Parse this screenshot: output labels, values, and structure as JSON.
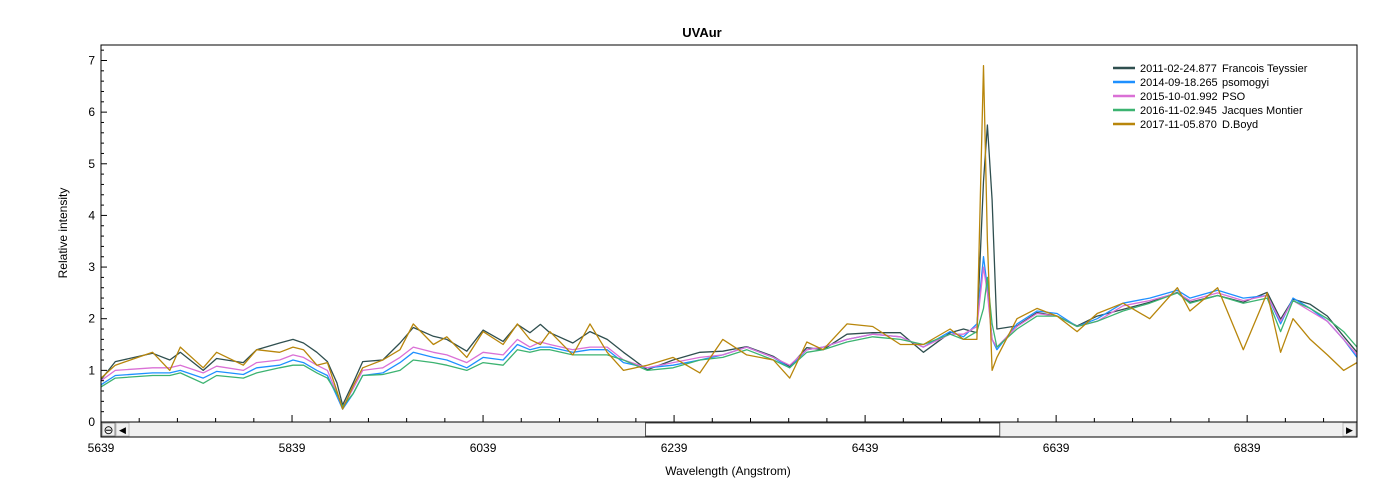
{
  "chart_data": {
    "type": "line",
    "title": "UVAur",
    "xlabel": "Wavelength (Angstrom)",
    "ylabel": "Relative intensity",
    "xlim": [
      5639,
      6954
    ],
    "ylim": [
      0,
      7.3
    ],
    "xticks": [
      "5639",
      "5839",
      "6039",
      "6239",
      "6439",
      "6639",
      "6839"
    ],
    "yticks": [
      "0",
      "1",
      "2",
      "3",
      "4",
      "5",
      "6",
      "7"
    ],
    "grid": false,
    "legend_position": "top-right",
    "x": [
      5639,
      5654,
      5693,
      5711,
      5722,
      5746,
      5760,
      5788,
      5802,
      5826,
      5840,
      5851,
      5865,
      5876,
      5886,
      5892,
      5903,
      5913,
      5934,
      5952,
      5966,
      5987,
      6001,
      6022,
      6039,
      6060,
      6075,
      6088,
      6099,
      6109,
      6133,
      6151,
      6169,
      6186,
      6211,
      6238,
      6266,
      6290,
      6315,
      6343,
      6360,
      6378,
      6395,
      6420,
      6447,
      6476,
      6500,
      6528,
      6542,
      6556,
      6563,
      6567,
      6572,
      6577,
      6598,
      6619,
      6640,
      6661,
      6682,
      6709,
      6737,
      6766,
      6779,
      6808,
      6835,
      6860,
      6874,
      6887,
      6905,
      6923,
      6940,
      6954
    ],
    "series": [
      {
        "name": "2011-02-24.877",
        "observer": "Francois Teyssier",
        "color": "#2f4f4f",
        "values": [
          0.82,
          1.17,
          1.33,
          1.2,
          1.35,
          1.0,
          1.23,
          1.15,
          1.4,
          1.53,
          1.6,
          1.53,
          1.35,
          1.17,
          0.76,
          0.33,
          0.76,
          1.17,
          1.2,
          1.53,
          1.83,
          1.66,
          1.6,
          1.37,
          1.78,
          1.56,
          1.89,
          1.73,
          1.89,
          1.73,
          1.53,
          1.75,
          1.6,
          1.35,
          1.01,
          1.2,
          1.35,
          1.37,
          1.46,
          1.27,
          1.07,
          1.44,
          1.4,
          1.7,
          1.73,
          1.73,
          1.35,
          1.73,
          1.8,
          1.73,
          4.66,
          5.75,
          4.3,
          1.8,
          1.86,
          2.12,
          2.05,
          1.86,
          2.05,
          2.18,
          2.32,
          2.51,
          2.32,
          2.45,
          2.32,
          2.51,
          1.99,
          2.38,
          2.28,
          2.05,
          1.66,
          1.35
        ]
      },
      {
        "name": "2014-09-18.265",
        "observer": "psomogyi",
        "color": "#1e90ff",
        "values": [
          0.72,
          0.9,
          0.95,
          0.95,
          1.0,
          0.85,
          0.98,
          0.92,
          1.05,
          1.1,
          1.2,
          1.15,
          1.0,
          0.9,
          0.5,
          0.25,
          0.55,
          0.9,
          0.95,
          1.15,
          1.35,
          1.25,
          1.2,
          1.05,
          1.25,
          1.2,
          1.5,
          1.4,
          1.45,
          1.45,
          1.35,
          1.4,
          1.4,
          1.15,
          1.05,
          1.1,
          1.2,
          1.3,
          1.45,
          1.25,
          1.05,
          1.4,
          1.45,
          1.6,
          1.7,
          1.65,
          1.45,
          1.75,
          1.65,
          1.9,
          3.2,
          2.6,
          1.6,
          1.4,
          1.9,
          2.15,
          2.1,
          1.85,
          2.0,
          2.3,
          2.4,
          2.55,
          2.4,
          2.55,
          2.4,
          2.45,
          1.9,
          2.4,
          2.2,
          1.95,
          1.6,
          1.25
        ]
      },
      {
        "name": "2015-10-01.992",
        "observer": "PSO",
        "color": "#da70d6",
        "values": [
          0.8,
          1.0,
          1.05,
          1.05,
          1.1,
          0.95,
          1.08,
          1.0,
          1.15,
          1.2,
          1.3,
          1.25,
          1.1,
          1.0,
          0.55,
          0.28,
          0.65,
          1.0,
          1.05,
          1.25,
          1.45,
          1.35,
          1.3,
          1.15,
          1.35,
          1.3,
          1.6,
          1.45,
          1.55,
          1.5,
          1.4,
          1.45,
          1.45,
          1.2,
          1.05,
          1.15,
          1.25,
          1.3,
          1.45,
          1.25,
          1.1,
          1.4,
          1.45,
          1.6,
          1.7,
          1.65,
          1.45,
          1.7,
          1.7,
          1.85,
          3.0,
          2.5,
          1.6,
          1.45,
          1.85,
          2.1,
          2.05,
          1.85,
          1.95,
          2.25,
          2.35,
          2.5,
          2.35,
          2.5,
          2.35,
          2.45,
          1.95,
          2.35,
          2.15,
          1.95,
          1.6,
          1.3
        ]
      },
      {
        "name": "2016-11-02.945",
        "observer": "Jacques Montier",
        "color": "#3cb371",
        "values": [
          0.68,
          0.85,
          0.9,
          0.9,
          0.95,
          0.75,
          0.9,
          0.85,
          0.95,
          1.05,
          1.1,
          1.1,
          0.95,
          0.85,
          0.55,
          0.3,
          0.55,
          0.9,
          0.92,
          1.0,
          1.2,
          1.15,
          1.1,
          1.0,
          1.15,
          1.1,
          1.4,
          1.35,
          1.4,
          1.4,
          1.3,
          1.3,
          1.3,
          1.2,
          1.0,
          1.05,
          1.2,
          1.25,
          1.4,
          1.2,
          1.05,
          1.35,
          1.4,
          1.55,
          1.65,
          1.6,
          1.5,
          1.7,
          1.6,
          1.75,
          2.2,
          2.8,
          1.9,
          1.45,
          1.8,
          2.05,
          2.05,
          1.85,
          1.95,
          2.15,
          2.3,
          2.5,
          2.3,
          2.45,
          2.3,
          2.4,
          1.75,
          2.35,
          2.2,
          2.0,
          1.75,
          1.45
        ]
      },
      {
        "name": "2017-11-05.870",
        "observer": "D.Boyd",
        "color": "#b8860b",
        "values": [
          0.85,
          1.1,
          1.35,
          1.0,
          1.45,
          1.05,
          1.35,
          1.1,
          1.4,
          1.35,
          1.45,
          1.4,
          1.1,
          1.15,
          0.6,
          0.25,
          0.7,
          1.05,
          1.2,
          1.4,
          1.9,
          1.5,
          1.65,
          1.25,
          1.75,
          1.5,
          1.9,
          1.6,
          1.5,
          1.75,
          1.3,
          1.9,
          1.35,
          1.0,
          1.1,
          1.25,
          0.95,
          1.6,
          1.3,
          1.2,
          0.85,
          1.55,
          1.4,
          1.9,
          1.85,
          1.5,
          1.5,
          1.8,
          1.6,
          1.6,
          6.9,
          3.5,
          1.0,
          1.25,
          2.0,
          2.2,
          2.05,
          1.75,
          2.1,
          2.3,
          2.0,
          2.6,
          2.15,
          2.6,
          1.4,
          2.5,
          1.35,
          2.0,
          1.6,
          1.3,
          1.0,
          1.15
        ]
      }
    ]
  },
  "scrollbar": {
    "zoom_button": "⊖",
    "left_arrow": "◀",
    "right_arrow": "▶",
    "thumb_start_fraction": 0.425,
    "thumb_end_fraction": 0.717
  }
}
